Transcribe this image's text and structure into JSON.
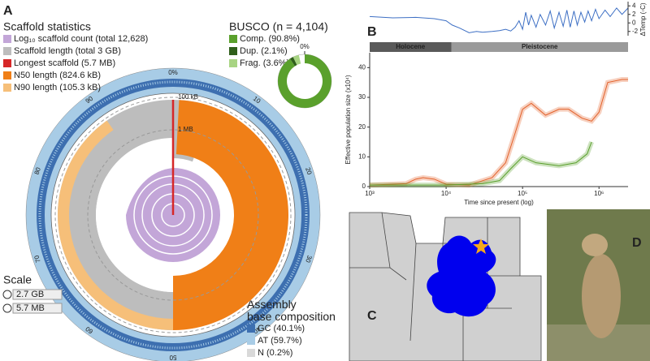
{
  "panel_labels": [
    "A",
    "B",
    "C",
    "D"
  ],
  "snail": {
    "title": "Scaffold statistics",
    "legend": [
      {
        "label": "Log₁₀ scaffold count (total 12,628)",
        "color": "#c3a6d8"
      },
      {
        "label": "Scaffold length (total 3 GB)",
        "color": "#bdbdbd"
      },
      {
        "label": "Longest scaffold (5.7 MB)",
        "color": "#d62728"
      },
      {
        "label": "N50 length (824.6 kB)",
        "color": "#f07f17"
      },
      {
        "label": "N90 length (105.3 kB)",
        "color": "#f6bf79"
      }
    ],
    "ring_labels": [
      "100 kB",
      "1 MB"
    ],
    "circle_ticks": [
      "0%",
      "10",
      "20",
      "30",
      "40",
      "50",
      "60",
      "70",
      "80",
      "90"
    ],
    "scale_title": "Scale",
    "scale_items": [
      "2.7 GB",
      "5.7 MB"
    ],
    "composition_title": "Assembly base composition",
    "composition": [
      {
        "label": "GC (40.1%)",
        "color": "#3d6fb0"
      },
      {
        "label": "AT (59.7%)",
        "color": "#a8cce6"
      },
      {
        "label": "N (0.2%)",
        "color": "#d9d9d9"
      }
    ]
  },
  "chart_data": [
    {
      "type": "pie",
      "title": "BUSCO (n = 4,104)",
      "categories": [
        "Comp. (90.8%)",
        "Dup. (2.1%)",
        "Frag. (3.6%)"
      ],
      "values": [
        90.8,
        2.1,
        3.6
      ],
      "colors": [
        "#5aa02c",
        "#2f5f1b",
        "#a8d483"
      ],
      "ticks": [
        {
          "value": 0,
          "label": "0%"
        }
      ]
    },
    {
      "type": "line",
      "x_label": "Time since present (log)",
      "y_label": "Effective population size (x10⁴)",
      "log_x": true,
      "xlim": [
        1000,
        2400000
      ],
      "xticks": [
        {
          "value": 1000,
          "label": "10³"
        },
        {
          "value": 10000,
          "label": "10⁴"
        },
        {
          "value": 100000,
          "label": "10⁵"
        },
        {
          "value": 1000000,
          "label": "10⁶"
        }
      ],
      "ylim": [
        0,
        45
      ],
      "yticks": [
        0,
        10,
        20,
        30,
        40
      ],
      "periods": [
        {
          "name": "Holocene",
          "start": 1000,
          "end": 11700,
          "color": "#5a5a5a"
        },
        {
          "name": "Pleistocene",
          "start": 11700,
          "end": 2400000,
          "color": "#9a9a9a"
        }
      ],
      "series": [
        {
          "name": null,
          "color": "#e3622c",
          "x": [
            1000,
            3000,
            4000,
            5000,
            7000,
            10000,
            20000,
            40000,
            60000,
            80000,
            100000,
            130000,
            200000,
            300000,
            400000,
            600000,
            800000,
            1000000,
            1300000,
            2000000,
            2400000
          ],
          "values": [
            0.5,
            1,
            2.5,
            3,
            2.5,
            0.8,
            0.5,
            3,
            8,
            18,
            26,
            28,
            24,
            26,
            26,
            23,
            22,
            25,
            35,
            36,
            36
          ]
        },
        {
          "name": null,
          "color": "#5aa02c",
          "x": [
            1000,
            3000,
            10000,
            30000,
            50000,
            70000,
            100000,
            150000,
            300000,
            500000,
            700000,
            800000
          ],
          "values": [
            0.5,
            0.5,
            0.5,
            1,
            2,
            6,
            10,
            8,
            7,
            8,
            11,
            15
          ]
        }
      ]
    },
    {
      "type": "line",
      "y2_label": "ΔTemp (◦C)",
      "log_x": true,
      "xlim": [
        1000,
        2400000
      ],
      "y2lim": [
        -3,
        5
      ],
      "y2ticks": [
        4,
        2,
        0,
        -2
      ],
      "series": [
        {
          "name": null,
          "color": "#3d6fc4",
          "axis": "y2",
          "x": [
            1000,
            2000,
            4000,
            7000,
            10000,
            12000,
            15000,
            20000,
            25000,
            30000,
            40000,
            50000,
            60000,
            70000,
            80000,
            90000,
            100000,
            110000,
            120000,
            130000,
            150000,
            170000,
            200000,
            230000,
            260000,
            300000,
            340000,
            380000,
            420000,
            470000,
            520000,
            580000,
            650000,
            720000,
            800000,
            900000,
            1000000,
            1200000,
            1400000,
            1700000,
            2000000,
            2400000
          ],
          "values": [
            1.5,
            1.2,
            1.3,
            1.0,
            0.5,
            -0.5,
            -1.2,
            -2.3,
            -2.0,
            -2.2,
            -2.0,
            -1.8,
            -1.5,
            -1.9,
            -1.0,
            0.5,
            -1.5,
            2.5,
            -0.5,
            1.8,
            -1.0,
            2.0,
            -0.5,
            2.8,
            -1.2,
            2.5,
            -0.8,
            3.0,
            -1.0,
            2.8,
            -0.5,
            2.5,
            0.2,
            2.8,
            0.5,
            3.2,
            1.0,
            3.0,
            1.5,
            3.5,
            2.0,
            3.5
          ]
        }
      ]
    }
  ]
}
